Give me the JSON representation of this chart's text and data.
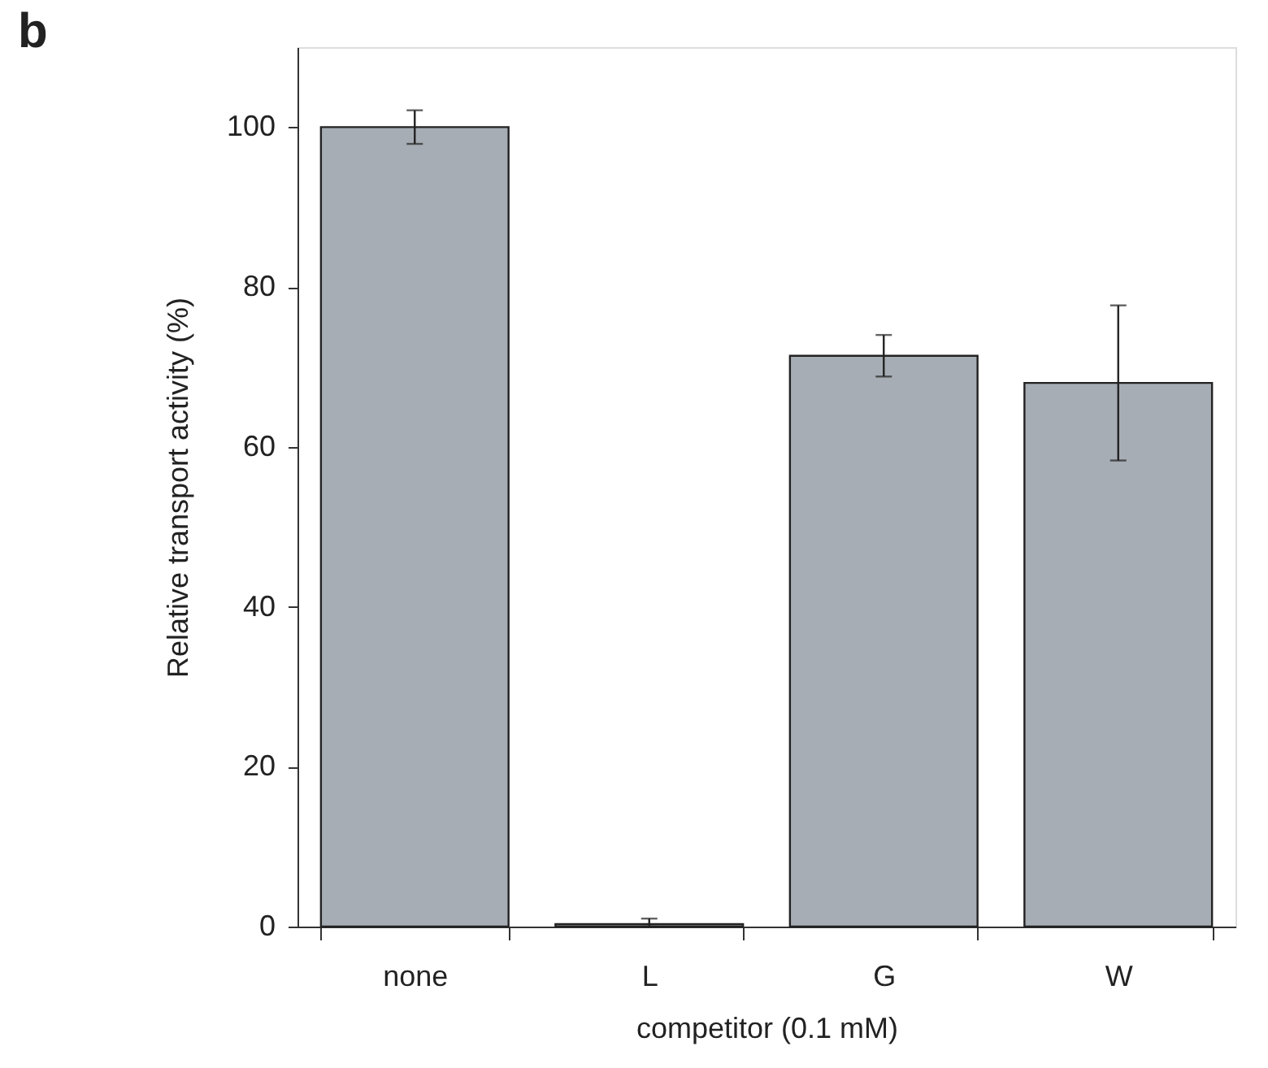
{
  "chart_data": {
    "type": "bar",
    "xlabel": "competitor (0.1 mM)",
    "ylabel": "Relative transport activity (%)",
    "categories": [
      "none",
      "L",
      "G",
      "W"
    ],
    "series": [
      {
        "color": "#a7adb5",
        "values": [
          100,
          0.3,
          71.4,
          68.0
        ],
        "errors": [
          2.1,
          [
            0.3,
            0.7
          ],
          2.6,
          9.7
        ]
      }
    ],
    "ylim": [
      0,
      110
    ],
    "yticks": [
      0,
      20,
      40,
      60,
      80,
      100
    ],
    "grid": false,
    "annotations": [
      "b"
    ]
  }
}
